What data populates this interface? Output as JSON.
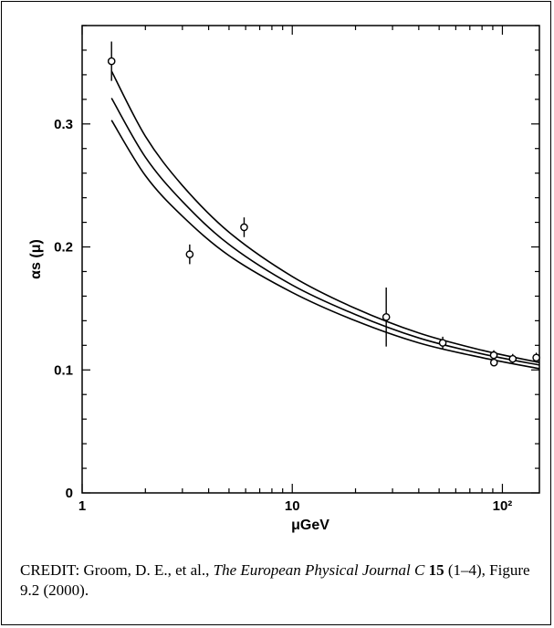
{
  "chart_data": {
    "type": "scatter",
    "xscale": "log",
    "xlim": [
      1,
      150
    ],
    "ylim": [
      0,
      0.38
    ],
    "xlabel": "μGeV",
    "ylabel": "αs (μ)",
    "x_ticks": [
      "1",
      "10",
      "10²"
    ],
    "y_ticks": [
      "0",
      "0.1",
      "0.2",
      "0.3"
    ],
    "points": [
      {
        "x": 1.38,
        "y": 0.351,
        "err": 0.016
      },
      {
        "x": 3.25,
        "y": 0.194,
        "err": 0.008
      },
      {
        "x": 5.9,
        "y": 0.216,
        "err": 0.008
      },
      {
        "x": 28,
        "y": 0.143,
        "err": 0.024
      },
      {
        "x": 52,
        "y": 0.122,
        "err": 0.005
      },
      {
        "x": 91,
        "y": 0.112,
        "err": 0.004
      },
      {
        "x": 91.2,
        "y": 0.106,
        "err": 0.002
      },
      {
        "x": 112,
        "y": 0.109,
        "err": 0.004
      },
      {
        "x": 145,
        "y": 0.11,
        "err": 0.004
      }
    ],
    "curves": [
      {
        "values": [
          [
            1.38,
            0.343
          ],
          [
            2,
            0.29
          ],
          [
            3,
            0.25
          ],
          [
            5,
            0.212
          ],
          [
            10,
            0.176
          ],
          [
            20,
            0.15
          ],
          [
            40,
            0.13
          ],
          [
            80,
            0.116
          ],
          [
            150,
            0.106
          ]
        ]
      },
      {
        "values": [
          [
            1.38,
            0.321
          ],
          [
            2,
            0.273
          ],
          [
            3,
            0.237
          ],
          [
            5,
            0.202
          ],
          [
            10,
            0.169
          ],
          [
            20,
            0.145
          ],
          [
            40,
            0.126
          ],
          [
            80,
            0.113
          ],
          [
            150,
            0.104
          ]
        ]
      },
      {
        "values": [
          [
            1.38,
            0.303
          ],
          [
            2,
            0.258
          ],
          [
            3,
            0.225
          ],
          [
            5,
            0.193
          ],
          [
            10,
            0.163
          ],
          [
            20,
            0.14
          ],
          [
            40,
            0.122
          ],
          [
            80,
            0.11
          ],
          [
            150,
            0.101
          ]
        ]
      }
    ],
    "grid": false
  },
  "credit": {
    "label": "CREDIT:",
    "authors": "Groom, D. E., et al.,",
    "journal": "The European Physical Journal C",
    "volume": "15",
    "rest": "(1–4), Figure 9.2 (2000)."
  }
}
